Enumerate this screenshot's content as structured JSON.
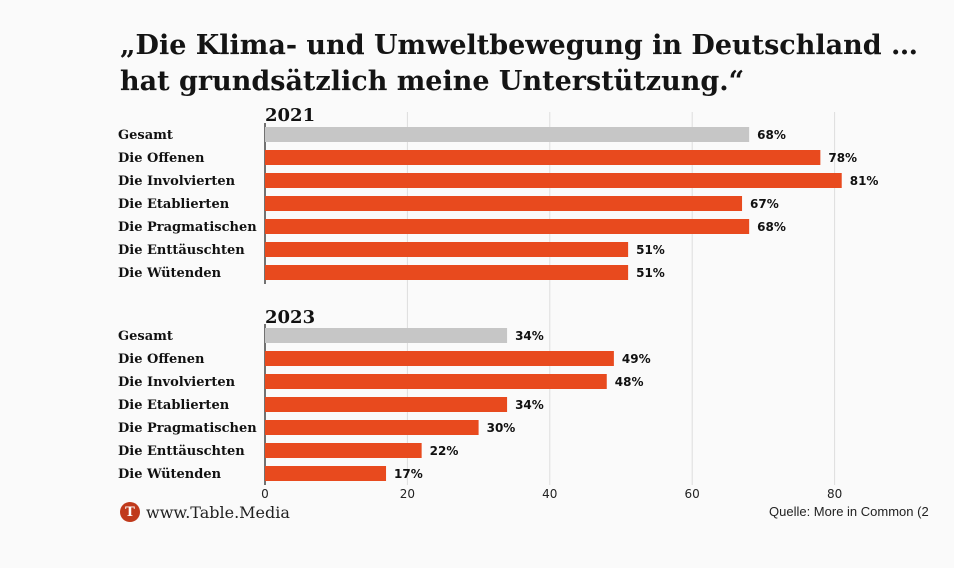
{
  "title": {
    "line1": "„Die Klima- und Umweltbewegung in Deutschland …",
    "line2": "hat grundsätzlich meine Unterstützung.“"
  },
  "footer": {
    "logo_letter": "T",
    "site": "www.Table.Media",
    "source": "Quelle: More in Common (2"
  },
  "colors": {
    "total": "#c6c6c6",
    "group": "#e84a1e",
    "grid": "#dddddd"
  },
  "chart_data": {
    "type": "bar",
    "orientation": "horizontal",
    "xlim": [
      0,
      95
    ],
    "xticks": [
      0,
      20,
      40,
      60,
      80
    ],
    "value_suffix": "%",
    "grid": true,
    "categories": [
      "Gesamt",
      "Die Offenen",
      "Die Involvierten",
      "Die Etablierten",
      "Die Pragmatischen",
      "Die Enttäuschten",
      "Die Wütenden"
    ],
    "panels": [
      {
        "name": "2021",
        "values": [
          68,
          78,
          81,
          67,
          68,
          51,
          51
        ]
      },
      {
        "name": "2023",
        "values": [
          34,
          49,
          48,
          34,
          30,
          22,
          17
        ]
      }
    ]
  }
}
